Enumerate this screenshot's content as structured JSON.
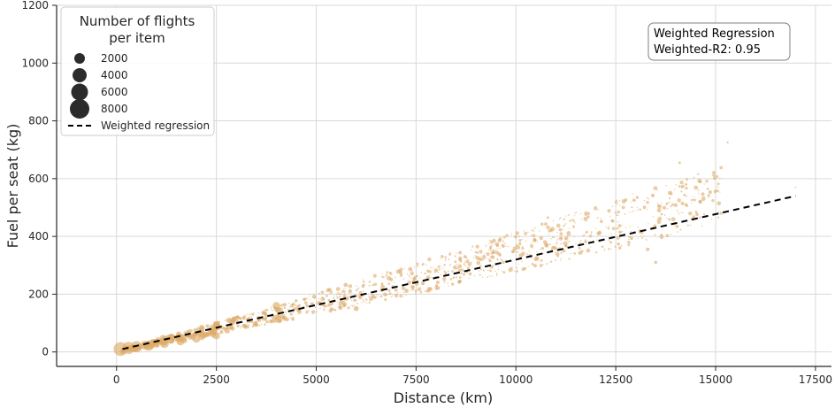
{
  "chart_data": {
    "type": "scatter",
    "xlabel": "Distance (km)",
    "ylabel": "Fuel per seat (kg)",
    "xlim": [
      -1500,
      17900
    ],
    "ylim": [
      -50,
      1200
    ],
    "xticks": [
      0,
      2500,
      5000,
      7500,
      10000,
      12500,
      15000,
      17500
    ],
    "yticks": [
      0,
      200,
      400,
      600,
      800,
      1000,
      1200
    ],
    "grid": true,
    "marker_color": "#ddac6a",
    "regression_color": "#000000",
    "legend": {
      "placement": "top-left",
      "title_line1": "Number of flights",
      "title_line2": "per item",
      "sizes": [
        {
          "label": "2000",
          "value": 2000
        },
        {
          "label": "4000",
          "value": 4000
        },
        {
          "label": "6000",
          "value": 6000
        },
        {
          "label": "8000",
          "value": 8000
        }
      ],
      "line_label": "Weighted regression"
    },
    "annotation": {
      "line1": "Weighted Regression",
      "line2": "Weighted-R2: 0.95",
      "placement": "top-right"
    },
    "regression": {
      "x": [
        150,
        17000
      ],
      "y": [
        10,
        540
      ]
    },
    "highlighted_points": [
      {
        "x": 100,
        "y": 10,
        "flights": 9000
      },
      {
        "x": 300,
        "y": 14,
        "flights": 7000
      },
      {
        "x": 500,
        "y": 18,
        "flights": 6000
      },
      {
        "x": 800,
        "y": 22,
        "flights": 5000
      },
      {
        "x": 1200,
        "y": 30,
        "flights": 4000
      },
      {
        "x": 1600,
        "y": 38,
        "flights": 3500
      },
      {
        "x": 2000,
        "y": 46,
        "flights": 3000
      },
      {
        "x": 2500,
        "y": 56,
        "flights": 2500
      },
      {
        "x": 4000,
        "y": 160,
        "flights": 2600
      },
      {
        "x": 4000,
        "y": 115,
        "flights": 3200
      },
      {
        "x": 5300,
        "y": 215,
        "flights": 700
      },
      {
        "x": 6000,
        "y": 150,
        "flights": 1200
      },
      {
        "x": 7800,
        "y": 255,
        "flights": 900
      },
      {
        "x": 8600,
        "y": 320,
        "flights": 500
      },
      {
        "x": 9200,
        "y": 330,
        "flights": 600
      },
      {
        "x": 10800,
        "y": 465,
        "flights": 300
      },
      {
        "x": 11200,
        "y": 350,
        "flights": 500
      },
      {
        "x": 12600,
        "y": 360,
        "flights": 400
      },
      {
        "x": 13300,
        "y": 355,
        "flights": 600
      },
      {
        "x": 13500,
        "y": 310,
        "flights": 450
      },
      {
        "x": 13800,
        "y": 515,
        "flights": 200
      },
      {
        "x": 14100,
        "y": 655,
        "flights": 300
      },
      {
        "x": 15300,
        "y": 725,
        "flights": 200
      },
      {
        "x": 17000,
        "y": 570,
        "flights": 100
      }
    ]
  }
}
